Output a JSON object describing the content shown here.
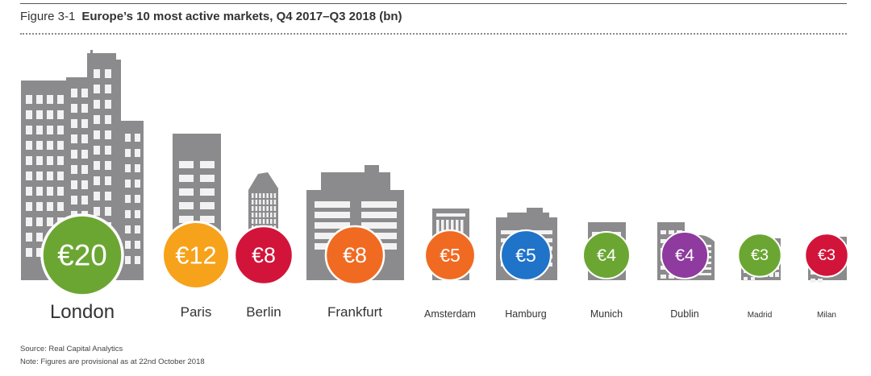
{
  "figure": {
    "number": "Figure 3-1",
    "title": "Europe’s 10 most active markets, Q4 2017–Q3 2018 (bn)",
    "source": "Source: Real Capital Analytics",
    "note": "Note: Figures are provisional as at 22nd October 2018"
  },
  "chart_data": {
    "type": "bar",
    "title": "Europe’s 10 most active markets, Q4 2017–Q3 2018 (bn)",
    "xlabel": "",
    "ylabel": "",
    "unit": "€ bn",
    "categories": [
      "London",
      "Paris",
      "Berlin",
      "Frankfurt",
      "Amsterdam",
      "Hamburg",
      "Munich",
      "Dublin",
      "Madrid",
      "Milan"
    ],
    "values": [
      20,
      12,
      8,
      8,
      5,
      5,
      4,
      4,
      3,
      3
    ],
    "value_labels": [
      "€20",
      "€12",
      "€8",
      "€8",
      "€5",
      "€5",
      "€4",
      "€4",
      "€3",
      "€3"
    ],
    "colors": [
      "#6ba633",
      "#f7a21b",
      "#d2143a",
      "#f06a22",
      "#f06a22",
      "#1f73c9",
      "#6ba633",
      "#8e3a9e",
      "#6ba633",
      "#d2143a"
    ],
    "building_color": "#8b8b8d"
  }
}
